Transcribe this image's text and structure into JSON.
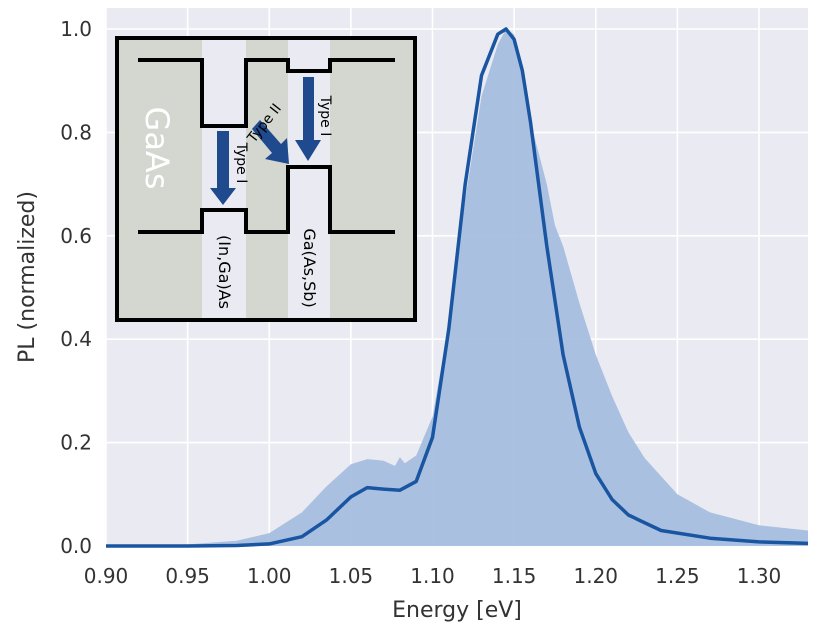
{
  "chart_data": {
    "type": "line",
    "title": "",
    "xlabel": "Energy [eV]",
    "ylabel": "PL (normalized)",
    "xlim": [
      0.9,
      1.33
    ],
    "ylim": [
      0.0,
      1.0
    ],
    "xticks": [
      "0.90",
      "0.95",
      "1.00",
      "1.05",
      "1.10",
      "1.15",
      "1.20",
      "1.25",
      "1.30"
    ],
    "yticks": [
      "0.0",
      "0.2",
      "0.4",
      "0.6",
      "0.8",
      "1.0"
    ],
    "grid": true,
    "background": "#eaeaf2",
    "series": [
      {
        "style": "filled-area",
        "color": "#a7bedf",
        "x": [
          0.9,
          0.95,
          0.98,
          1.0,
          1.02,
          1.035,
          1.05,
          1.06,
          1.07,
          1.077,
          1.08,
          1.083,
          1.09,
          1.1,
          1.11,
          1.12,
          1.13,
          1.14,
          1.145,
          1.15,
          1.155,
          1.16,
          1.17,
          1.175,
          1.18,
          1.19,
          1.2,
          1.21,
          1.22,
          1.23,
          1.25,
          1.27,
          1.3,
          1.33
        ],
        "y": [
          0.0,
          0.003,
          0.01,
          0.025,
          0.065,
          0.115,
          0.158,
          0.168,
          0.165,
          0.155,
          0.172,
          0.16,
          0.175,
          0.25,
          0.43,
          0.67,
          0.87,
          0.97,
          1.0,
          0.99,
          0.93,
          0.82,
          0.7,
          0.62,
          0.58,
          0.47,
          0.37,
          0.29,
          0.22,
          0.17,
          0.1,
          0.065,
          0.04,
          0.03
        ]
      },
      {
        "style": "line",
        "color": "#1955a0",
        "x": [
          0.9,
          0.95,
          0.98,
          1.0,
          1.02,
          1.035,
          1.05,
          1.06,
          1.07,
          1.08,
          1.09,
          1.1,
          1.11,
          1.12,
          1.13,
          1.14,
          1.145,
          1.15,
          1.155,
          1.16,
          1.17,
          1.18,
          1.19,
          1.2,
          1.21,
          1.22,
          1.24,
          1.27,
          1.3,
          1.33
        ],
        "y": [
          0.0,
          0.0,
          0.001,
          0.004,
          0.018,
          0.05,
          0.095,
          0.113,
          0.11,
          0.108,
          0.125,
          0.21,
          0.42,
          0.7,
          0.91,
          0.99,
          1.0,
          0.98,
          0.92,
          0.82,
          0.58,
          0.37,
          0.23,
          0.14,
          0.09,
          0.06,
          0.03,
          0.015,
          0.008,
          0.005
        ]
      }
    ],
    "inset": {
      "material_label": "GaAs",
      "well_label_1": "(In,Ga)As",
      "well_label_2": "Ga(As,Sb)",
      "arrow_label_1": "Type I",
      "arrow_label_2": "Type II",
      "arrow_label_3": "Type I",
      "arrow_color": "#1f4a8e",
      "bg_color": "#d4d6d0"
    }
  }
}
